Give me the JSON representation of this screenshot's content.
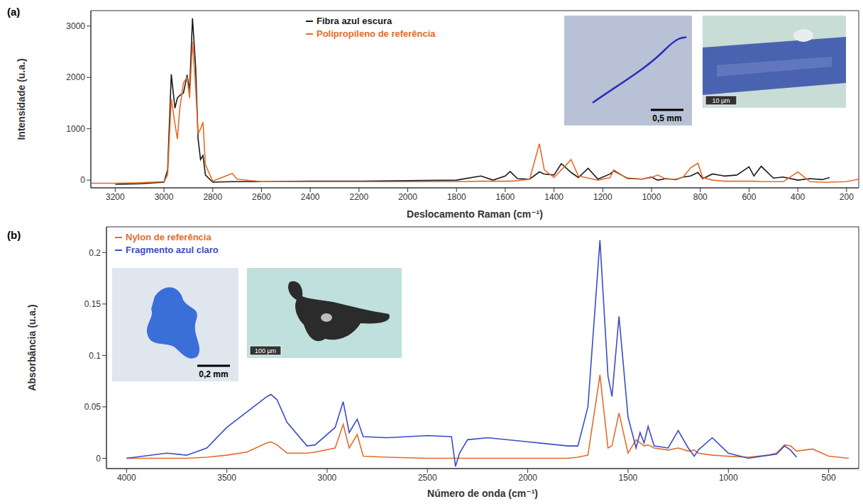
{
  "chart_data": [
    {
      "type": "line",
      "panel": "(a)",
      "x_label": "Deslocamento Raman (cm⁻¹)",
      "y_label": "Intensidade (u.a.)",
      "legend": "top",
      "grid": false,
      "x": [
        3300,
        3200,
        3100,
        3000,
        2985,
        2970,
        2955,
        2945,
        2935,
        2920,
        2905,
        2895,
        2883,
        2870,
        2860,
        2850,
        2840,
        2830,
        2800,
        2720,
        2700,
        2600,
        2400,
        2200,
        2000,
        1800,
        1700,
        1650,
        1600,
        1580,
        1550,
        1500,
        1460,
        1440,
        1400,
        1370,
        1330,
        1300,
        1260,
        1220,
        1170,
        1155,
        1100,
        1040,
        1000,
        975,
        940,
        900,
        870,
        840,
        810,
        790,
        750,
        700,
        650,
        600,
        580,
        550,
        500,
        460,
        400,
        350,
        300,
        270,
        200,
        150
      ],
      "xlim": [
        3300,
        150
      ],
      "xticks": [
        3200,
        3000,
        2800,
        2600,
        2400,
        2200,
        2000,
        1800,
        1600,
        1400,
        1200,
        1000,
        800,
        600,
        400,
        200
      ],
      "ylim": [
        -150,
        3300
      ],
      "yticks": [
        0,
        1000,
        2000,
        3000
      ],
      "series": [
        {
          "name": "Fibra azul escura",
          "color": "#1a1a1a",
          "values": [
            null,
            -80,
            -70,
            -40,
            200,
            2060,
            1400,
            1600,
            1650,
            1700,
            2050,
            1750,
            3150,
            2200,
            800,
            400,
            480,
            100,
            -40,
            -30,
            -30,
            -30,
            -20,
            -20,
            -10,
            0,
            80,
            0,
            80,
            170,
            30,
            20,
            160,
            120,
            100,
            320,
            150,
            50,
            230,
            20,
            120,
            180,
            40,
            20,
            60,
            0,
            30,
            10,
            60,
            80,
            150,
            30,
            120,
            80,
            100,
            260,
            80,
            270,
            40,
            60,
            0,
            30,
            10,
            50,
            null,
            null
          ]
        },
        {
          "name": "Polipropileno de referência",
          "color": "#e46c2a",
          "values": [
            -60,
            -60,
            -50,
            -30,
            100,
            1580,
            1100,
            800,
            1400,
            1900,
            2000,
            1600,
            2700,
            1800,
            900,
            1000,
            1130,
            300,
            -20,
            130,
            20,
            -30,
            -30,
            -30,
            -30,
            -30,
            -20,
            -20,
            -20,
            -20,
            -10,
            20,
            710,
            200,
            50,
            200,
            400,
            80,
            40,
            0,
            50,
            200,
            30,
            20,
            50,
            100,
            20,
            20,
            60,
            240,
            330,
            50,
            0,
            -20,
            -20,
            -20,
            -20,
            -30,
            -30,
            -30,
            160,
            -30,
            -40,
            -40,
            -30,
            20
          ]
        }
      ],
      "insets": [
        {
          "scale_bar": "0,5 mm"
        },
        {
          "scale_bar": "10 µm"
        }
      ]
    },
    {
      "type": "line",
      "panel": "(b)",
      "x_label": "Número de onda (cm⁻¹)",
      "y_label": "Absorbância (u.a.)",
      "legend": "top-left",
      "grid": false,
      "x": [
        4000,
        3800,
        3700,
        3600,
        3500,
        3400,
        3300,
        3280,
        3250,
        3200,
        3100,
        3060,
        2960,
        2920,
        2890,
        2850,
        2820,
        2700,
        2500,
        2380,
        2360,
        2340,
        2300,
        2200,
        2000,
        1800,
        1750,
        1700,
        1640,
        1600,
        1580,
        1545,
        1500,
        1460,
        1440,
        1420,
        1400,
        1370,
        1300,
        1250,
        1200,
        1170,
        1150,
        1080,
        1000,
        900,
        800,
        760,
        720,
        690,
        660,
        580,
        500,
        400
      ],
      "xlim": [
        4100,
        350
      ],
      "xticks": [
        4000,
        3500,
        3000,
        2500,
        2000,
        1500,
        1000,
        500
      ],
      "ylim": [
        -0.01,
        0.225
      ],
      "yticks": [
        0,
        0.05,
        0.1,
        0.15,
        0.2
      ],
      "series": [
        {
          "name": "Nylon de referência",
          "color": "#e46c2a",
          "values": [
            0,
            0,
            0,
            0.001,
            0.003,
            0.006,
            0.015,
            0.016,
            0.013,
            0.005,
            0.005,
            0.006,
            0.01,
            0.033,
            0.01,
            0.023,
            0.002,
            0.001,
            0,
            0,
            0,
            0,
            0,
            0,
            0,
            0,
            0.001,
            0.003,
            0.081,
            0.01,
            0.012,
            0.044,
            0.005,
            0.018,
            0.015,
            0.012,
            0.013,
            0.01,
            0.008,
            0.01,
            0.007,
            0.008,
            0.005,
            0.003,
            0.002,
            0.001,
            0.003,
            0.005,
            0.013,
            0.012,
            0.007,
            0.009,
            0.002,
            0
          ]
        },
        {
          "name": "Fragmento azul claro",
          "color": "#3a4cc8",
          "values": [
            0,
            0.005,
            0.003,
            0.01,
            0.03,
            0.045,
            0.06,
            0.062,
            0.057,
            0.035,
            0.012,
            0.013,
            0.03,
            0.055,
            0.025,
            0.038,
            0.021,
            0.02,
            0.022,
            0.021,
            -0.008,
            0.005,
            0.018,
            0.02,
            0.016,
            0.012,
            0.012,
            0.05,
            0.212,
            0.08,
            0.06,
            0.138,
            0.04,
            0.01,
            0.025,
            0.015,
            0.031,
            0.012,
            0.01,
            0.027,
            0.01,
            0.002,
            0.008,
            0.02,
            0.005,
            0,
            0.003,
            0.004,
            0.012,
            0.008,
            0.001,
            null,
            null,
            null
          ]
        }
      ],
      "insets": [
        {
          "scale_bar": "0,2 mm"
        },
        {
          "scale_bar": "100 µm"
        }
      ]
    }
  ]
}
